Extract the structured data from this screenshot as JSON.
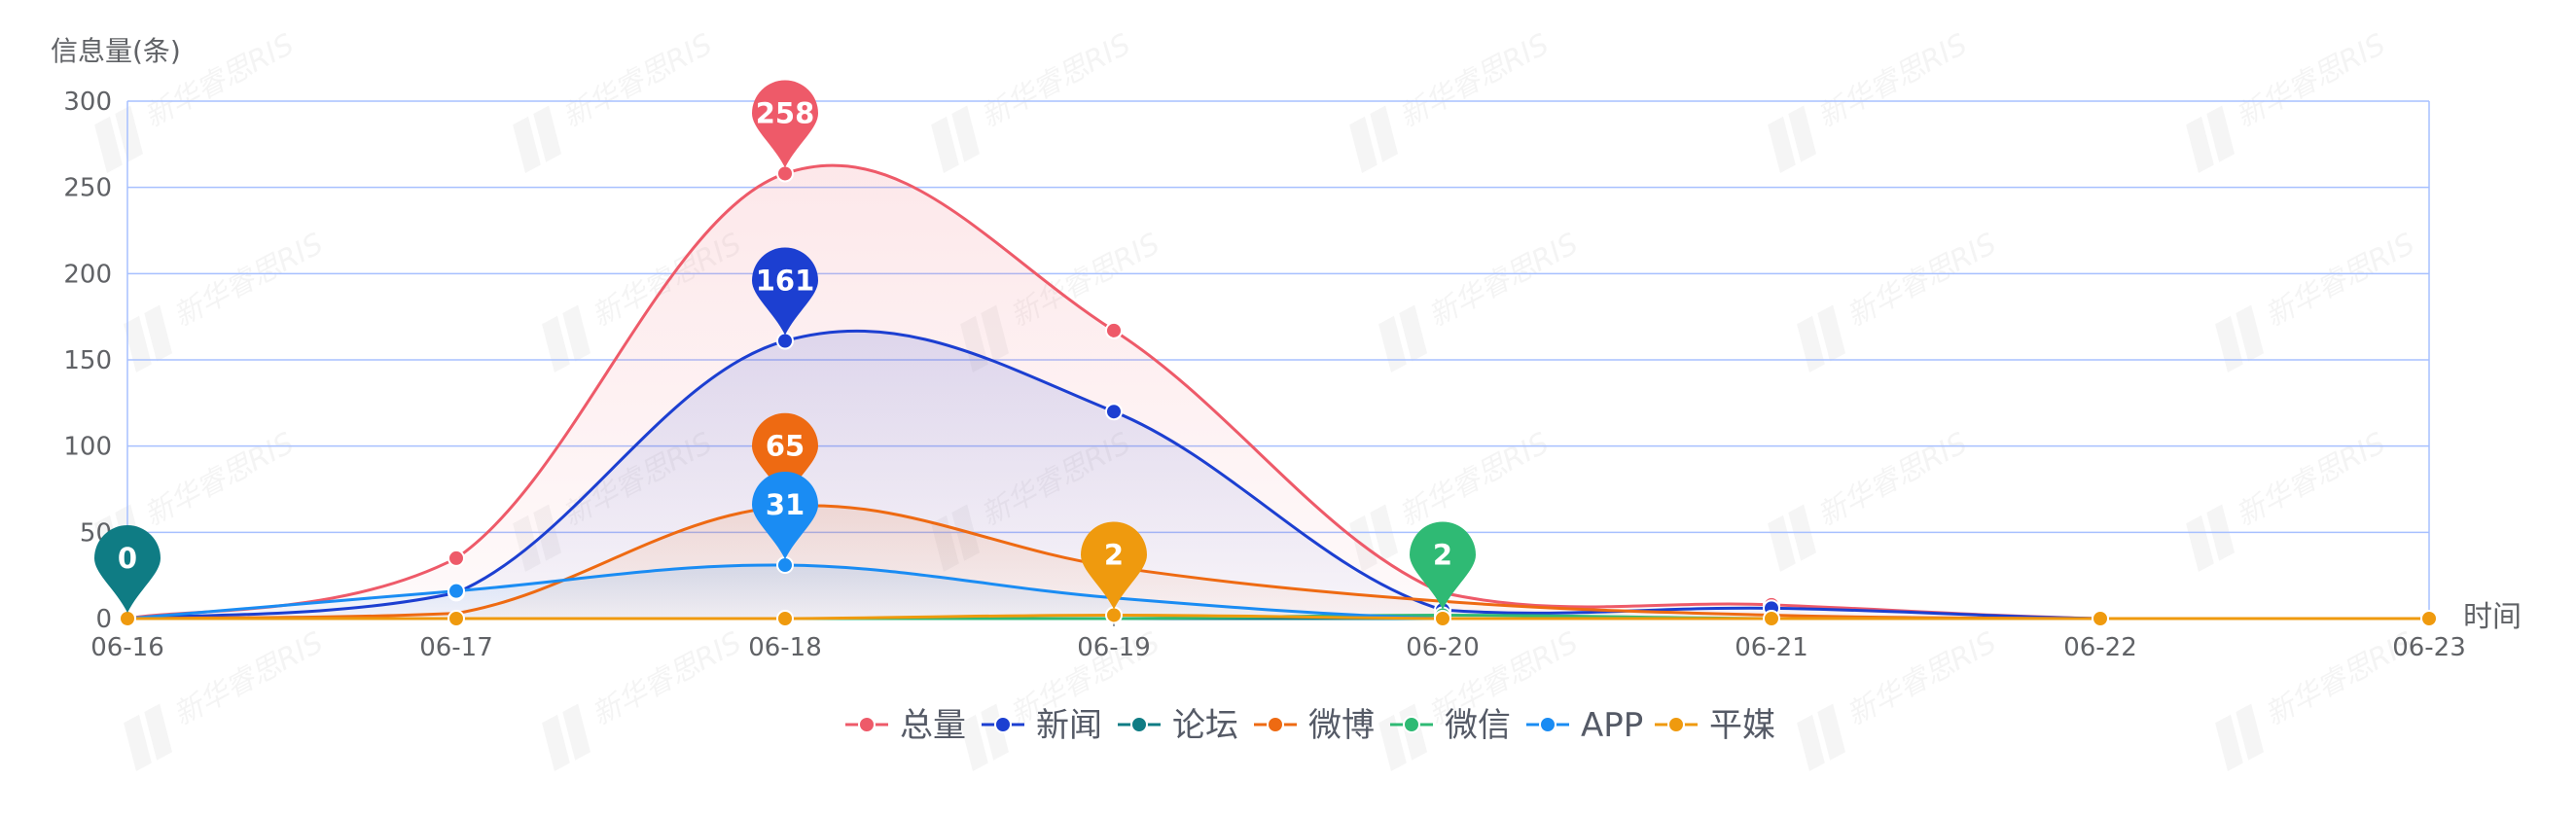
{
  "chart_data": {
    "type": "line",
    "ylabel": "信息量(条)",
    "xlabel": "时间",
    "ylim": [
      0,
      300
    ],
    "yticks": [
      0,
      50,
      100,
      150,
      200,
      250,
      300
    ],
    "categories": [
      "06-16",
      "06-17",
      "06-18",
      "06-19",
      "06-20",
      "06-21",
      "06-22",
      "06-23"
    ],
    "grid": true,
    "legend_position": "bottom-center",
    "series": [
      {
        "name": "总量",
        "color": "#ee5a69",
        "values": [
          0,
          35,
          258,
          167,
          15,
          8,
          0,
          0
        ],
        "area": true,
        "peak_label": "258",
        "peak_index": 2
      },
      {
        "name": "新闻",
        "color": "#1c3fd1",
        "values": [
          0,
          15,
          161,
          120,
          5,
          6,
          0,
          0
        ],
        "area": true,
        "peak_label": "161",
        "peak_index": 2
      },
      {
        "name": "论坛",
        "color": "#0f7c84",
        "values": [
          0,
          0,
          0,
          0,
          0,
          0,
          0,
          0
        ],
        "area": false,
        "peak_label": "0",
        "peak_index": 0
      },
      {
        "name": "微博",
        "color": "#ee6a12",
        "values": [
          0,
          3,
          65,
          30,
          10,
          2,
          0,
          0
        ],
        "area": true,
        "peak_label": "65",
        "peak_index": 2
      },
      {
        "name": "微信",
        "color": "#2fba74",
        "values": [
          0,
          0,
          0,
          0,
          2,
          0,
          0,
          0
        ],
        "area": false,
        "peak_label": "2",
        "peak_index": 4
      },
      {
        "name": "APP",
        "color": "#1a8cf3",
        "values": [
          0,
          16,
          31,
          12,
          0,
          0,
          0,
          0
        ],
        "area": true,
        "peak_label": "31",
        "peak_index": 2
      },
      {
        "name": "平媒",
        "color": "#ef9a0e",
        "values": [
          0,
          0,
          0,
          2,
          0,
          0,
          0,
          0
        ],
        "area": false,
        "peak_label": "2",
        "peak_index": 3
      }
    ]
  },
  "watermark": {
    "text": "新华睿思RIS"
  }
}
